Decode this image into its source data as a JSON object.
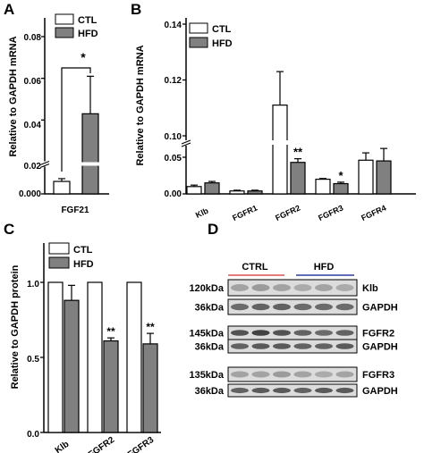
{
  "panels": {
    "A": "A",
    "B": "B",
    "C": "C",
    "D": "D"
  },
  "colors": {
    "ctl_fill": "#ffffff",
    "hfd_fill": "#808080",
    "axis": "#000000",
    "ctrl_underline": "#e05050",
    "hfd_underline": "#2b3f9a",
    "blot_bg": "#dcdcdc",
    "band": "#3a3a3a"
  },
  "chart_data": [
    {
      "panel": "A",
      "type": "bar",
      "ylabel": "Relative to GAPDH mRNA",
      "categories": [
        "FGF21"
      ],
      "legend": [
        "CTL",
        "HFD"
      ],
      "legend_position": "top-left",
      "y_broken": true,
      "yticks_lower": [
        "0.000",
        "0.02"
      ],
      "yticks_upper": [
        "0.04",
        "0.06",
        "0.08"
      ],
      "ylim_upper": [
        0.02,
        0.085
      ],
      "series": [
        {
          "name": "CTL",
          "values": [
            0.009
          ],
          "errors": [
            0.002
          ]
        },
        {
          "name": "HFD",
          "values": [
            0.043
          ],
          "errors": [
            0.018
          ]
        }
      ],
      "annotations": [
        {
          "text": "*",
          "type": "bracket"
        }
      ]
    },
    {
      "panel": "B",
      "type": "bar",
      "ylabel": "Relative to GAPDH mRNA",
      "categories": [
        "Klb",
        "FGFR1",
        "FGFR2",
        "FGFR3",
        "FGFR4"
      ],
      "legend": [
        "CTL",
        "HFD"
      ],
      "legend_position": "top-left",
      "y_broken": true,
      "yticks_lower": [
        "0.00",
        "0.05"
      ],
      "yticks_upper": [
        "0.10",
        "0.12",
        "0.14"
      ],
      "ylim_lower": [
        0,
        0.07
      ],
      "ylim_upper": [
        0.1,
        0.145
      ],
      "series": [
        {
          "name": "CTL",
          "values": [
            0.01,
            0.004,
            0.111,
            0.02,
            0.046
          ],
          "errors": [
            0.002,
            0.001,
            0.012,
            0.001,
            0.01
          ]
        },
        {
          "name": "HFD",
          "values": [
            0.015,
            0.004,
            0.043,
            0.014,
            0.045
          ],
          "errors": [
            0.002,
            0.001,
            0.005,
            0.002,
            0.017
          ]
        }
      ],
      "significance": [
        "",
        "",
        "**",
        "*",
        ""
      ]
    },
    {
      "panel": "C",
      "type": "bar",
      "ylabel": "Relative to GAPDH protein",
      "categories": [
        "Klb",
        "FGFR2",
        "FGFR3"
      ],
      "legend": [
        "CTL",
        "HFD"
      ],
      "legend_position": "top-left",
      "yticks": [
        "0.0",
        "0.5",
        "1.0"
      ],
      "ylim": [
        0,
        1.25
      ],
      "series": [
        {
          "name": "CTL",
          "values": [
            1.0,
            1.0,
            1.0
          ],
          "errors": [
            0,
            0,
            0
          ]
        },
        {
          "name": "HFD",
          "values": [
            0.88,
            0.61,
            0.59
          ],
          "errors": [
            0.1,
            0.02,
            0.07
          ]
        }
      ],
      "significance": [
        "",
        "**",
        "**"
      ]
    }
  ],
  "blot": {
    "groups": [
      "CTRL",
      "HFD"
    ],
    "rows": [
      {
        "mw": "120kDa",
        "label": "Klb"
      },
      {
        "mw": "36kDa",
        "label": "GAPDH"
      },
      {
        "mw": "145kDa",
        "label": "FGFR2"
      },
      {
        "mw": "36kDa",
        "label": "GAPDH"
      },
      {
        "mw": "135kDa",
        "label": "FGFR3"
      },
      {
        "mw": "36kDa",
        "label": "GAPDH"
      }
    ]
  }
}
